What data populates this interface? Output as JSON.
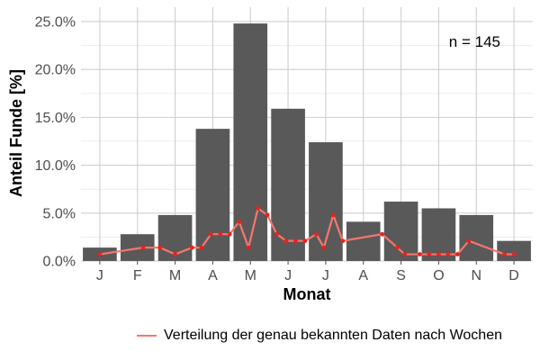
{
  "chart_data": {
    "type": "bar",
    "xlabel": "Monat",
    "ylabel": "Anteil Funde [%]",
    "categories": [
      "J",
      "F",
      "M",
      "A",
      "M",
      "J",
      "J",
      "A",
      "S",
      "O",
      "N",
      "D"
    ],
    "values": [
      1.4,
      2.8,
      4.8,
      13.8,
      24.8,
      15.9,
      12.4,
      4.1,
      6.2,
      5.5,
      4.8,
      2.1
    ],
    "bar_color": "#595959",
    "ylim": [
      0,
      26.5
    ],
    "yticks": [
      0,
      5,
      10,
      15,
      20,
      25
    ],
    "ytick_labels": [
      "0.0%",
      "5.0%",
      "10.0%",
      "15.0%",
      "20.0%",
      "25.0%"
    ],
    "grid": true,
    "annotation": "n = 145",
    "line_series": {
      "name": "Verteilung der genau bekannten Daten nach Wochen",
      "color": "#f8766d",
      "points": [
        {
          "x": 1.0,
          "y": 0.7
        },
        {
          "x": 2.15,
          "y": 1.4
        },
        {
          "x": 2.6,
          "y": 1.4
        },
        {
          "x": 3.0,
          "y": 0.7
        },
        {
          "x": 3.45,
          "y": 1.4
        },
        {
          "x": 3.7,
          "y": 1.4
        },
        {
          "x": 3.95,
          "y": 2.8
        },
        {
          "x": 4.2,
          "y": 2.8
        },
        {
          "x": 4.45,
          "y": 2.8
        },
        {
          "x": 4.7,
          "y": 4.1
        },
        {
          "x": 4.95,
          "y": 1.4
        },
        {
          "x": 5.2,
          "y": 5.5
        },
        {
          "x": 5.45,
          "y": 4.8
        },
        {
          "x": 5.7,
          "y": 2.8
        },
        {
          "x": 5.95,
          "y": 2.1
        },
        {
          "x": 6.2,
          "y": 2.1
        },
        {
          "x": 6.45,
          "y": 2.1
        },
        {
          "x": 6.75,
          "y": 2.8
        },
        {
          "x": 6.95,
          "y": 1.4
        },
        {
          "x": 7.2,
          "y": 4.8
        },
        {
          "x": 7.45,
          "y": 2.1
        },
        {
          "x": 8.5,
          "y": 2.8
        },
        {
          "x": 8.9,
          "y": 1.4
        },
        {
          "x": 9.1,
          "y": 0.7
        },
        {
          "x": 9.5,
          "y": 0.7
        },
        {
          "x": 9.75,
          "y": 0.7
        },
        {
          "x": 10.0,
          "y": 0.7
        },
        {
          "x": 10.25,
          "y": 0.7
        },
        {
          "x": 10.5,
          "y": 0.7
        },
        {
          "x": 10.8,
          "y": 2.1
        },
        {
          "x": 11.75,
          "y": 0.7
        },
        {
          "x": 12.0,
          "y": 0.7
        }
      ]
    }
  }
}
